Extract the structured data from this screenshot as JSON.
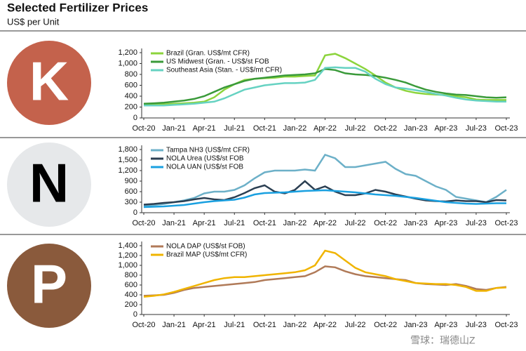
{
  "title": "Selected Fertilizer Prices",
  "subtitle": "US$ per Unit",
  "watermark": "雪球：瑞德山Z",
  "chart_data": [
    {
      "type": "line",
      "label": "K",
      "categories": [
        "Oct-20",
        null,
        null,
        "Jan-21",
        null,
        null,
        "Apr-21",
        null,
        null,
        "Jul-21",
        null,
        null,
        "Oct-21",
        null,
        null,
        "Jan-22",
        null,
        null,
        "Apr-22",
        null,
        null,
        "Jul-22",
        null,
        null,
        "Oct-22",
        null,
        null,
        "Jan-23",
        null,
        null,
        "Apr-23",
        null,
        null,
        "Jul-23",
        null,
        null,
        "Oct-23"
      ],
      "ylim": [
        0,
        1200
      ],
      "yticks": [
        0,
        200,
        400,
        600,
        800,
        {
          "value": 1000,
          "label": "1,000"
        },
        {
          "value": 1200,
          "label": "1,200"
        }
      ],
      "series": [
        {
          "name": "Brazil (Gran. US$/mt CFR)",
          "color": "#8cd43c",
          "values": [
            250,
            250,
            250,
            260,
            270,
            280,
            300,
            380,
            520,
            620,
            700,
            720,
            730,
            740,
            760,
            760,
            770,
            780,
            1150,
            1180,
            1100,
            1000,
            900,
            780,
            650,
            560,
            500,
            460,
            440,
            430,
            420,
            400,
            380,
            340,
            330,
            330,
            330
          ]
        },
        {
          "name": "US Midwest (Gran. - US$/st FOB",
          "color": "#3a9a3a",
          "values": [
            260,
            270,
            280,
            300,
            320,
            350,
            400,
            480,
            560,
            620,
            680,
            720,
            740,
            760,
            780,
            790,
            800,
            820,
            900,
            880,
            820,
            800,
            790,
            770,
            740,
            700,
            650,
            580,
            520,
            480,
            450,
            430,
            420,
            400,
            380,
            370,
            380
          ]
        },
        {
          "name": "Southeast Asia (Stan. - US$/mt CFR)",
          "color": "#66d2c2",
          "values": [
            230,
            230,
            230,
            240,
            250,
            260,
            280,
            300,
            360,
            440,
            520,
            560,
            600,
            620,
            640,
            640,
            650,
            700,
            920,
            930,
            920,
            920,
            850,
            720,
            620,
            560,
            540,
            510,
            480,
            440,
            410,
            370,
            340,
            320,
            310,
            300,
            300
          ]
        }
      ]
    },
    {
      "type": "line",
      "label": "N",
      "categories": [
        "Oct-20",
        null,
        null,
        "Jan-21",
        null,
        null,
        "Apr-21",
        null,
        null,
        "Jul-21",
        null,
        null,
        "Oct-21",
        null,
        null,
        "Jan-22",
        null,
        null,
        "Apr-22",
        null,
        null,
        "Jul-22",
        null,
        null,
        "Oct-22",
        null,
        null,
        "Jan-23",
        null,
        null,
        "Apr-23",
        null,
        null,
        "Jul-23",
        null,
        null,
        "Oct-23"
      ],
      "ylim": [
        0,
        1800
      ],
      "yticks": [
        0,
        300,
        600,
        900,
        {
          "value": 1200,
          "label": "1,200"
        },
        {
          "value": 1500,
          "label": "1,500"
        },
        {
          "value": 1800,
          "label": "1,800"
        }
      ],
      "series": [
        {
          "name": "Tampa NH3 (US$/mt CFR)",
          "color": "#6cb0c8",
          "values": [
            200,
            220,
            250,
            300,
            350,
            420,
            550,
            600,
            600,
            650,
            780,
            980,
            1150,
            1200,
            1200,
            1200,
            1230,
            1200,
            1650,
            1550,
            1300,
            1300,
            1350,
            1400,
            1450,
            1250,
            1100,
            1050,
            900,
            750,
            650,
            450,
            400,
            350,
            300,
            450,
            650
          ]
        },
        {
          "name": "NOLA Urea (US$/st FOB",
          "color": "#2b3f52",
          "values": [
            230,
            250,
            280,
            300,
            330,
            380,
            420,
            380,
            360,
            440,
            560,
            700,
            780,
            600,
            550,
            650,
            900,
            650,
            750,
            600,
            500,
            500,
            550,
            650,
            600,
            520,
            460,
            400,
            350,
            330,
            320,
            350,
            330,
            330,
            300,
            360,
            350
          ]
        },
        {
          "name": "NOLA UAN (US$/st FOB",
          "color": "#1aa0e0",
          "values": [
            160,
            170,
            180,
            200,
            220,
            260,
            300,
            330,
            350,
            370,
            430,
            520,
            560,
            570,
            580,
            600,
            620,
            630,
            640,
            620,
            600,
            580,
            550,
            520,
            500,
            480,
            450,
            420,
            380,
            340,
            300,
            280,
            260,
            250,
            260,
            270,
            270
          ]
        }
      ]
    },
    {
      "type": "line",
      "label": "P",
      "categories": [
        "Oct-20",
        null,
        null,
        "Jan-21",
        null,
        null,
        "Apr-21",
        null,
        null,
        "Jul-21",
        null,
        null,
        "Oct-21",
        null,
        null,
        "Jan-22",
        null,
        null,
        "Apr-22",
        null,
        null,
        "Jul-22",
        null,
        null,
        "Oct-22",
        null,
        null,
        "Jan-23",
        null,
        null,
        "Apr-23",
        null,
        null,
        "Jul-23",
        null,
        null,
        "Oct-23"
      ],
      "ylim": [
        0,
        1400
      ],
      "yticks": [
        0,
        200,
        400,
        600,
        800,
        {
          "value": 1000,
          "label": "1,000"
        },
        {
          "value": 1200,
          "label": "1,200"
        },
        {
          "value": 1400,
          "label": "1,400"
        }
      ],
      "series": [
        {
          "name": "NOLA DAP (US$/st FOB)",
          "color": "#b07a58",
          "values": [
            380,
            390,
            400,
            440,
            500,
            540,
            560,
            580,
            600,
            620,
            640,
            660,
            700,
            720,
            740,
            760,
            780,
            860,
            980,
            960,
            880,
            820,
            780,
            760,
            740,
            720,
            700,
            640,
            620,
            610,
            600,
            620,
            580,
            520,
            500,
            540,
            560
          ]
        },
        {
          "name": "Brazil MAP (US$/mt CFR)",
          "color": "#f0b400",
          "values": [
            360,
            380,
            410,
            460,
            520,
            580,
            640,
            700,
            740,
            760,
            760,
            780,
            800,
            820,
            840,
            860,
            900,
            1000,
            1300,
            1250,
            1100,
            950,
            860,
            820,
            780,
            720,
            680,
            640,
            630,
            620,
            620,
            600,
            560,
            480,
            480,
            540,
            550
          ]
        }
      ]
    }
  ]
}
